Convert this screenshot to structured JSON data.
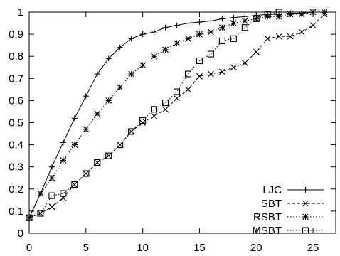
{
  "chart_data": {
    "type": "line",
    "title": "",
    "xlabel": "",
    "ylabel": "",
    "xlim": [
      0,
      27
    ],
    "ylim": [
      0,
      1
    ],
    "grid": false,
    "legend_position": "bottom-right",
    "x_ticks": [
      0,
      5,
      10,
      15,
      20,
      25
    ],
    "y_ticks": [
      0,
      0.1,
      0.2,
      0.3,
      0.4,
      0.5,
      0.6,
      0.7,
      0.8,
      0.9,
      1
    ],
    "x_tick_labels": [
      "0",
      "5",
      "10",
      "15",
      "20",
      "25"
    ],
    "y_tick_labels": [
      "0",
      "0.1",
      "0.2",
      "0.3",
      "0.4",
      "0.5",
      "0.6",
      "0.7",
      "0.8",
      "0.9",
      "1"
    ],
    "x": [
      0,
      1,
      2,
      3,
      4,
      5,
      6,
      7,
      8,
      9,
      10,
      11,
      12,
      13,
      14,
      15,
      16,
      17,
      18,
      19,
      20,
      21,
      22,
      23,
      24,
      25,
      26
    ],
    "series": [
      {
        "name": "LJC",
        "marker": "plus",
        "dash": "solid",
        "values": [
          0.07,
          0.18,
          0.3,
          0.41,
          0.52,
          0.62,
          0.72,
          0.79,
          0.84,
          0.88,
          0.9,
          0.91,
          0.93,
          0.94,
          0.95,
          0.955,
          0.96,
          0.97,
          0.975,
          0.98,
          0.985,
          0.99,
          0.99,
          0.995,
          0.995,
          1.0,
          1.0
        ]
      },
      {
        "name": "SBT",
        "marker": "x",
        "dash": "dashed",
        "values": [
          0.07,
          0.09,
          0.12,
          0.16,
          0.22,
          0.27,
          0.32,
          0.35,
          0.4,
          0.46,
          0.5,
          0.53,
          0.56,
          0.61,
          0.65,
          0.71,
          0.72,
          0.73,
          0.75,
          0.77,
          0.82,
          0.88,
          0.89,
          0.89,
          0.91,
          0.94,
          0.99
        ]
      },
      {
        "name": "RSBT",
        "marker": "star",
        "dash": "dotted",
        "values": [
          0.07,
          0.18,
          0.25,
          0.33,
          0.4,
          0.47,
          0.54,
          0.6,
          0.66,
          0.72,
          0.76,
          0.8,
          0.83,
          0.86,
          0.88,
          0.9,
          0.91,
          0.93,
          0.95,
          0.96,
          0.97,
          0.98,
          0.98,
          0.99,
          0.99,
          1.0,
          1.0
        ]
      },
      {
        "name": "MSBT",
        "marker": "square",
        "dash": "dotted",
        "values": [
          0.07,
          0.09,
          0.17,
          0.18,
          0.22,
          0.27,
          0.32,
          0.35,
          0.4,
          0.46,
          0.51,
          0.56,
          0.59,
          0.64,
          0.72,
          0.78,
          0.81,
          0.87,
          0.88,
          0.93,
          0.97,
          0.99,
          1.0,
          null,
          null,
          null,
          null
        ]
      }
    ]
  }
}
